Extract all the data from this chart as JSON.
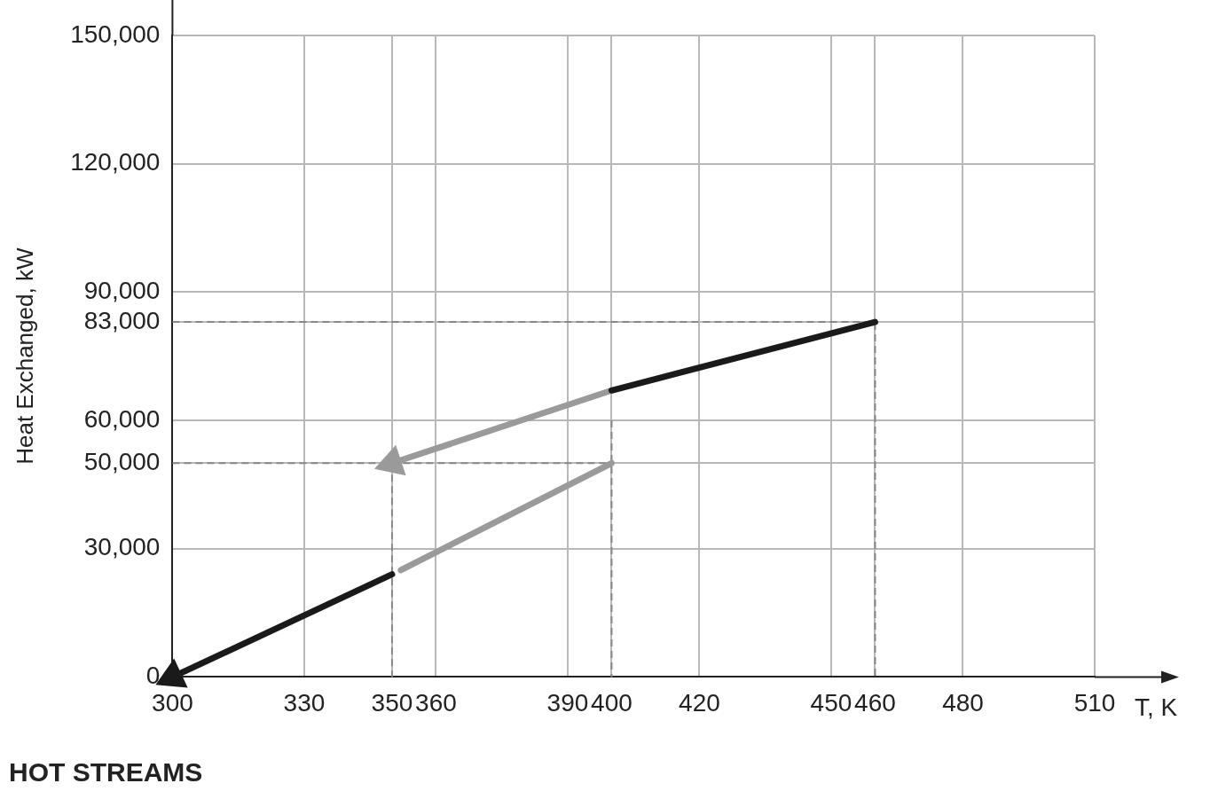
{
  "chart_data": {
    "type": "line",
    "title": "HOT STREAMS",
    "xlabel": "T, K",
    "ylabel": "Heat Exchanged, kW",
    "xlim": [
      300,
      510
    ],
    "xticks": [
      300,
      330,
      350,
      360,
      390,
      400,
      420,
      450,
      460,
      480,
      510
    ],
    "ylim": [
      0,
      150000
    ],
    "yticks": [
      {
        "value": 0,
        "label": "0"
      },
      {
        "value": 30000,
        "label": "30,000"
      },
      {
        "value": 50000,
        "label": "50,000"
      },
      {
        "value": 60000,
        "label": "60,000"
      },
      {
        "value": 83000,
        "label": "83,000"
      },
      {
        "value": 90000,
        "label": "90,000"
      },
      {
        "value": 120000,
        "label": "120,000"
      },
      {
        "value": 150000,
        "label": "150,000"
      }
    ],
    "grid": true,
    "legend": false,
    "series": [
      {
        "color": "#1a1a1a",
        "x": [
          460,
          400
        ],
        "values": [
          83000,
          67000
        ],
        "line_style": "solid"
      },
      {
        "color": "#9a9a9a",
        "x": [
          400,
          350
        ],
        "values": [
          67000,
          50000
        ],
        "line_style": "solid",
        "marker": "triangle"
      },
      {
        "color": "#9a9a9a",
        "x": [
          400,
          352
        ],
        "values": [
          50000,
          25000
        ],
        "line_style": "solid"
      },
      {
        "color": "#1a1a1a",
        "x": [
          350,
          300
        ],
        "values": [
          24000,
          0
        ],
        "line_style": "solid",
        "marker": "triangle"
      },
      {
        "color": "#888888",
        "x": [
          300,
          460,
          460
        ],
        "values": [
          83000,
          83000,
          0
        ],
        "line_style": "dashed"
      },
      {
        "color": "#888888",
        "x": [
          300,
          400
        ],
        "values": [
          50000,
          50000
        ],
        "line_style": "dashed"
      },
      {
        "color": "#888888",
        "x": [
          350,
          350
        ],
        "values": [
          50000,
          0
        ],
        "line_style": "dashed"
      },
      {
        "color": "#888888",
        "x": [
          400,
          400
        ],
        "values": [
          60000,
          0
        ],
        "line_style": "dashed"
      }
    ]
  }
}
